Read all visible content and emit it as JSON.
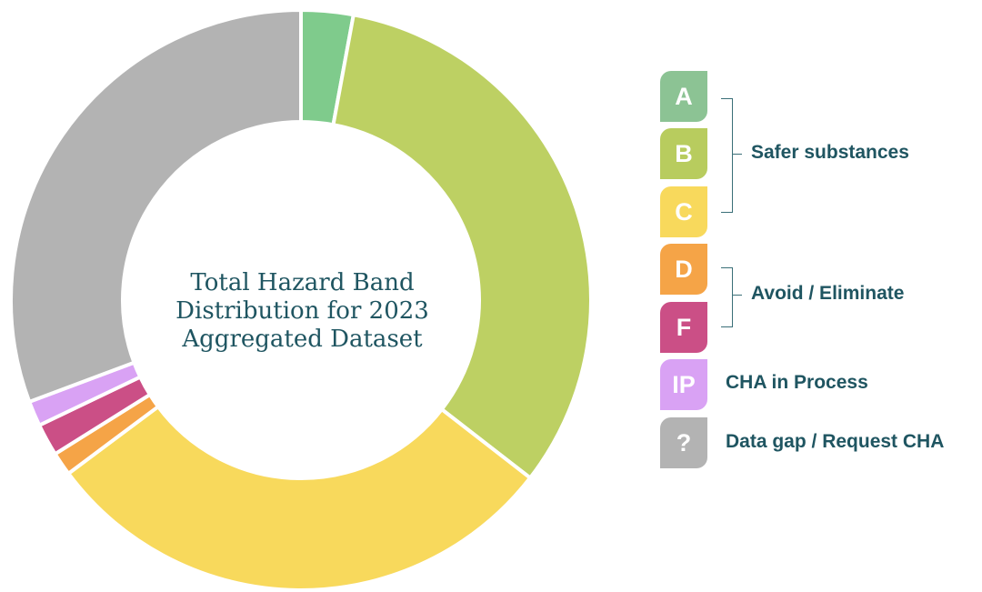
{
  "chart_data": {
    "type": "donut",
    "title_lines": [
      "Total Hazard Band",
      "Distribution for 2023",
      "Aggregated Dataset"
    ],
    "slices": [
      {
        "label": "A",
        "value": 2.9,
        "color": "#7fcb8c"
      },
      {
        "label": "B",
        "value": 32.6,
        "color": "#bdd063"
      },
      {
        "label": "C",
        "value": 29.3,
        "color": "#f8d95c"
      },
      {
        "label": "D",
        "value": 1.3,
        "color": "#f5a447"
      },
      {
        "label": "F",
        "value": 1.8,
        "color": "#cb4f86"
      },
      {
        "label": "IP",
        "value": 1.4,
        "color": "#d9a2f4"
      },
      {
        "label": "?",
        "value": 30.7,
        "color": "#b3b3b3"
      }
    ]
  },
  "legend": {
    "badges": [
      {
        "key": "A",
        "color": "#8cc394"
      },
      {
        "key": "B",
        "color": "#b8cc5e"
      },
      {
        "key": "C",
        "color": "#f8d95c"
      },
      {
        "key": "D",
        "color": "#f5a447"
      },
      {
        "key": "F",
        "color": "#cb4f86"
      },
      {
        "key": "IP",
        "color": "#d9a2f4"
      },
      {
        "key": "?",
        "color": "#b3b3b3"
      }
    ],
    "groups": {
      "safer": "Safer substances",
      "avoid": "Avoid / Eliminate",
      "process": "CHA in Process",
      "gap": "Data gap / Request CHA"
    }
  }
}
